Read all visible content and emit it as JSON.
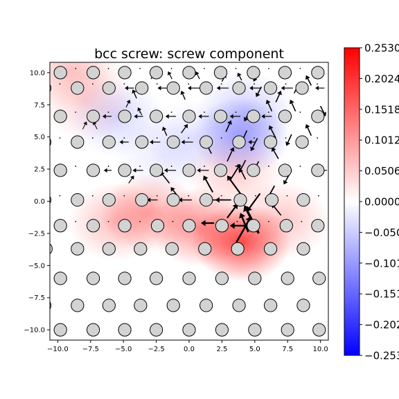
{
  "chart_data": {
    "type": "heatmap",
    "title": "bcc screw: screw component",
    "xlabel": "",
    "ylabel": "",
    "xlim": [
      -10.6,
      10.6
    ],
    "ylim": [
      -10.8,
      10.8
    ],
    "x_ticks": [
      -10.0,
      -7.5,
      -5.0,
      -2.5,
      0.0,
      2.5,
      5.0,
      7.5,
      10.0
    ],
    "x_tick_labels": [
      "−10.0",
      "−7.5",
      "−5.0",
      "−2.5",
      "0.0",
      "2.5",
      "5.0",
      "7.5",
      "10.0"
    ],
    "y_ticks": [
      -10.0,
      -7.5,
      -5.0,
      -2.5,
      0.0,
      2.5,
      5.0,
      7.5,
      10.0
    ],
    "y_tick_labels": [
      "−10.0",
      "−7.5",
      "−5.0",
      "−2.5",
      "0.0",
      "2.5",
      "5.0",
      "7.5",
      "10.0"
    ],
    "grid": false,
    "colormap": "bwr",
    "colors": {
      "min": "#0000ff",
      "mid": "#ffffff",
      "max": "#ff0000",
      "atom_fill": "#d3d3d3",
      "atom_edge": "#000000"
    },
    "colorbar": {
      "range": [
        -0.253,
        0.253
      ],
      "ticks": [
        0.253,
        0.2024,
        0.1518,
        0.1012,
        0.0506,
        0.0,
        -0.0506,
        -0.1012,
        -0.1518,
        -0.2024,
        -0.253
      ],
      "tick_labels": [
        "0.2530",
        "0.2024",
        "0.1518",
        "0.1012",
        "0.0506",
        "0.0000",
        "−0.050",
        "−0.101",
        "−0.151",
        "−0.202",
        "−0.253"
      ]
    },
    "atoms": {
      "rows": [
        {
          "y": 10.0,
          "x": [
            -9.8,
            -7.3,
            -4.9,
            -2.5,
            0.0,
            2.4,
            4.9,
            7.3,
            9.8
          ]
        },
        {
          "y": 8.8,
          "x": [
            -11.0,
            -8.5,
            -6.1,
            -3.6,
            -1.2,
            1.3,
            3.8,
            6.2,
            8.6,
            11.1
          ]
        },
        {
          "y": 6.6,
          "x": [
            -9.8,
            -7.3,
            -4.9,
            -2.5,
            0.0,
            2.4,
            4.9,
            7.3,
            9.8
          ]
        },
        {
          "y": 4.6,
          "x": [
            -11.0,
            -8.5,
            -6.1,
            -3.6,
            -1.2,
            1.3,
            3.8,
            6.2,
            8.6,
            11.1
          ]
        },
        {
          "y": 2.4,
          "x": [
            -9.8,
            -7.3,
            -4.9,
            -2.5,
            0.0,
            2.4,
            4.9,
            7.3,
            9.8
          ]
        },
        {
          "y": 0.1,
          "x": [
            -11.0,
            -8.5,
            -6.1,
            -3.6,
            -1.2,
            1.3,
            3.9,
            6.3,
            8.7,
            11.1
          ]
        },
        {
          "y": -1.9,
          "x": [
            -9.8,
            -7.3,
            -4.9,
            -2.4,
            0.0,
            2.5,
            4.9,
            7.4,
            9.8
          ]
        },
        {
          "y": -3.7,
          "x": [
            -10.9,
            -8.5,
            -6.1,
            -3.7,
            -1.3,
            1.2,
            3.7,
            6.2,
            8.7,
            11.1
          ]
        },
        {
          "y": -6.0,
          "x": [
            -9.8,
            -7.3,
            -4.9,
            -2.5,
            0.0,
            2.5,
            5.0,
            7.5,
            9.9
          ]
        },
        {
          "y": -8.1,
          "x": [
            -11.0,
            -8.5,
            -6.1,
            -3.7,
            -1.2,
            1.3,
            3.8,
            6.2,
            8.7,
            11.1
          ]
        },
        {
          "y": -10.0,
          "x": [
            -9.8,
            -7.3,
            -4.9,
            -2.5,
            0.0,
            2.5,
            5.0,
            7.5,
            9.9
          ]
        }
      ]
    },
    "field_peaks": [
      {
        "x": 4.0,
        "y": -3.2,
        "value": 0.19
      },
      {
        "x": 0.8,
        "y": -2.0,
        "value": 0.12
      },
      {
        "x": -3.0,
        "y": -0.9,
        "value": 0.09
      },
      {
        "x": -5.5,
        "y": -1.6,
        "value": 0.07
      },
      {
        "x": 7.0,
        "y": -1.5,
        "value": 0.06
      },
      {
        "x": -9.0,
        "y": 10.2,
        "value": 0.06
      },
      {
        "x": -7.8,
        "y": 7.8,
        "value": 0.04
      },
      {
        "x": 3.5,
        "y": 2.2,
        "value": 0.05
      },
      {
        "x": 4.0,
        "y": 5.0,
        "value": -0.09
      },
      {
        "x": 4.3,
        "y": 7.0,
        "value": -0.05
      },
      {
        "x": -5.5,
        "y": 6.5,
        "value": -0.04
      },
      {
        "x": 0.3,
        "y": 4.8,
        "value": -0.03
      },
      {
        "x": -2.0,
        "y": 3.5,
        "value": -0.02
      }
    ],
    "displacement_arrows": [
      {
        "x": 5.3,
        "y": -2.5,
        "dx": -1.1,
        "dy": 2.2,
        "width": 3.4
      },
      {
        "x": 4.5,
        "y": -2.4,
        "dx": -0.6,
        "dy": 1.5,
        "width": 2.5
      },
      {
        "x": 3.6,
        "y": -3.2,
        "dx": 1.1,
        "dy": 2.0,
        "width": 2.5
      },
      {
        "x": 4.5,
        "y": -1.9,
        "dx": -1.4,
        "dy": 0.0,
        "width": 2.4
      },
      {
        "x": 1.9,
        "y": -1.7,
        "dx": -1.0,
        "dy": 0.0,
        "width": 2.2
      },
      {
        "x": 3.9,
        "y": 0.6,
        "dx": -1.0,
        "dy": 1.4,
        "width": 2.2
      },
      {
        "x": 5.4,
        "y": 0.6,
        "dx": -1.0,
        "dy": -1.4,
        "width": 2.2
      },
      {
        "x": 2.9,
        "y": -1.3,
        "dx": 0.8,
        "dy": 1.1,
        "width": 2.2
      },
      {
        "x": 3.2,
        "y": 0.1,
        "dx": -1.2,
        "dy": 0.0,
        "width": 1.8
      },
      {
        "x": 1.8,
        "y": 0.7,
        "dx": -0.7,
        "dy": 1.3,
        "width": 2.0
      },
      {
        "x": 3.1,
        "y": 1.6,
        "dx": 0.8,
        "dy": 1.3,
        "width": 1.8
      },
      {
        "x": 6.5,
        "y": 1.2,
        "dx": -0.7,
        "dy": -1.3,
        "width": 1.8
      },
      {
        "x": 7.0,
        "y": -1.1,
        "dx": -0.7,
        "dy": 0.9,
        "width": 1.6
      },
      {
        "x": 4.3,
        "y": 1.7,
        "dx": -0.6,
        "dy": 1.2,
        "width": 1.6
      },
      {
        "x": 5.3,
        "y": 3.1,
        "dx": -0.6,
        "dy": -1.1,
        "width": 1.6
      },
      {
        "x": 2.9,
        "y": 3.1,
        "dx": 0.5,
        "dy": 1.1,
        "width": 1.6
      },
      {
        "x": 4.3,
        "y": 3.2,
        "dx": -0.5,
        "dy": -1.0,
        "width": 1.6
      },
      {
        "x": 7.8,
        "y": 2.4,
        "dx": -0.6,
        "dy": -1.1,
        "width": 1.6
      },
      {
        "x": 6.8,
        "y": 3.3,
        "dx": -0.5,
        "dy": 0.9,
        "width": 1.6
      },
      {
        "x": 1.7,
        "y": 3.7,
        "dx": -0.5,
        "dy": 1.0,
        "width": 1.6
      },
      {
        "x": 5.2,
        "y": 4.9,
        "dx": -0.5,
        "dy": -1.0,
        "width": 1.6
      },
      {
        "x": 6.6,
        "y": 4.9,
        "dx": -0.5,
        "dy": 1.0,
        "width": 1.6
      },
      {
        "x": 2.8,
        "y": 5.4,
        "dx": 0.4,
        "dy": 0.9,
        "width": 1.6
      },
      {
        "x": 4.4,
        "y": 5.5,
        "dx": -0.4,
        "dy": -0.9,
        "width": 1.6
      },
      {
        "x": 7.8,
        "y": 5.2,
        "dx": -0.4,
        "dy": -0.9,
        "width": 1.6
      },
      {
        "x": 9.3,
        "y": 5.1,
        "dx": -0.4,
        "dy": 0.9,
        "width": 1.6
      },
      {
        "x": 2.5,
        "y": 6.1,
        "dx": -0.3,
        "dy": 0.8,
        "width": 1.6
      },
      {
        "x": 4.6,
        "y": 7.0,
        "dx": -0.4,
        "dy": -0.8,
        "width": 1.6
      },
      {
        "x": 6.3,
        "y": 7.0,
        "dx": -0.4,
        "dy": 0.9,
        "width": 1.6
      },
      {
        "x": 8.1,
        "y": 7.0,
        "dx": -0.4,
        "dy": 0.9,
        "width": 1.6
      },
      {
        "x": 10.0,
        "y": 7.4,
        "dx": 0.4,
        "dy": -0.8,
        "width": 1.6
      },
      {
        "x": 5.5,
        "y": 8.9,
        "dx": -0.4,
        "dy": -0.8,
        "width": 1.6
      },
      {
        "x": 6.6,
        "y": 7.7,
        "dx": 0.4,
        "dy": 0.9,
        "width": 1.6
      },
      {
        "x": 8.0,
        "y": 8.4,
        "dx": 0.4,
        "dy": 0.8,
        "width": 1.6
      },
      {
        "x": 9.3,
        "y": 9.0,
        "dx": -0.4,
        "dy": 0.8,
        "width": 1.6
      },
      {
        "x": 2.5,
        "y": 9.3,
        "dx": 0.3,
        "dy": 0.6,
        "width": 1.4
      },
      {
        "x": 4.0,
        "y": 9.4,
        "dx": -0.3,
        "dy": 0.6,
        "width": 1.4
      },
      {
        "x": 5.2,
        "y": 9.9,
        "dx": -0.3,
        "dy": -0.6,
        "width": 1.4
      },
      {
        "x": -2.9,
        "y": 9.5,
        "dx": 0.3,
        "dy": 0.6,
        "width": 1.2
      },
      {
        "x": -1.3,
        "y": 9.5,
        "dx": -0.3,
        "dy": 0.6,
        "width": 1.2
      },
      {
        "x": 0.8,
        "y": 9.5,
        "dx": -0.3,
        "dy": 0.6,
        "width": 1.2
      },
      {
        "x": -4.0,
        "y": 8.0,
        "dx": -0.3,
        "dy": 0.7,
        "width": 1.4
      },
      {
        "x": -0.3,
        "y": 7.9,
        "dx": -0.3,
        "dy": 0.7,
        "width": 1.4
      },
      {
        "x": -0.6,
        "y": 5.3,
        "dx": 0.5,
        "dy": 0.7,
        "width": 1.4
      },
      {
        "x": -1.7,
        "y": 5.1,
        "dx": -0.3,
        "dy": 0.7,
        "width": 1.4
      },
      {
        "x": -4.8,
        "y": 7.3,
        "dx": 0.3,
        "dy": 0.6,
        "width": 1.2
      },
      {
        "x": -3.6,
        "y": 6.7,
        "dx": -0.3,
        "dy": 0.6,
        "width": 1.2
      },
      {
        "x": -1.5,
        "y": 1.4,
        "dx": -0.7,
        "dy": 0.9,
        "width": 1.6
      },
      {
        "x": -0.8,
        "y": 0.3,
        "dx": -0.6,
        "dy": 0.8,
        "width": 1.6
      },
      {
        "x": -4.6,
        "y": 1.4,
        "dx": 0.4,
        "dy": 0.6,
        "width": 1.2
      },
      {
        "x": 0.8,
        "y": 8.8,
        "dx": -0.9,
        "dy": 0.0,
        "width": 1.2
      },
      {
        "x": 3.0,
        "y": 8.8,
        "dx": -0.9,
        "dy": 0.0,
        "width": 1.2
      },
      {
        "x": 5.5,
        "y": 8.8,
        "dx": -0.9,
        "dy": 0.0,
        "width": 1.2
      },
      {
        "x": 7.9,
        "y": 8.8,
        "dx": -0.9,
        "dy": 0.0,
        "width": 1.2
      },
      {
        "x": 10.3,
        "y": 8.8,
        "dx": -0.7,
        "dy": 0.0,
        "width": 1.2
      },
      {
        "x": -1.7,
        "y": 8.8,
        "dx": -0.7,
        "dy": 0.0,
        "width": 1.2
      },
      {
        "x": -4.2,
        "y": 8.8,
        "dx": -0.7,
        "dy": 0.0,
        "width": 1.2
      },
      {
        "x": -1.0,
        "y": 6.6,
        "dx": -0.8,
        "dy": 0.0,
        "width": 1.2
      },
      {
        "x": 1.5,
        "y": 6.6,
        "dx": -0.8,
        "dy": 0.0,
        "width": 1.2
      },
      {
        "x": 3.9,
        "y": 6.6,
        "dx": -0.8,
        "dy": 0.0,
        "width": 1.2
      },
      {
        "x": 6.3,
        "y": 6.6,
        "dx": -0.8,
        "dy": 0.0,
        "width": 1.2
      },
      {
        "x": -3.5,
        "y": 6.6,
        "dx": -0.7,
        "dy": 0.0,
        "width": 1.2
      },
      {
        "x": -5.9,
        "y": 6.6,
        "dx": -0.7,
        "dy": 0.0,
        "width": 1.2
      },
      {
        "x": 0.3,
        "y": 4.6,
        "dx": -0.9,
        "dy": 0.0,
        "width": 1.2
      },
      {
        "x": 5.0,
        "y": 4.6,
        "dx": -0.5,
        "dy": 0.0,
        "width": 1.2
      },
      {
        "x": -2.2,
        "y": 4.6,
        "dx": -0.8,
        "dy": 0.0,
        "width": 1.2
      },
      {
        "x": -4.6,
        "y": 4.6,
        "dx": -0.7,
        "dy": 0.0,
        "width": 1.2
      },
      {
        "x": -1.0,
        "y": 2.4,
        "dx": -0.9,
        "dy": 0.0,
        "width": 1.2
      },
      {
        "x": 1.5,
        "y": 2.4,
        "dx": -0.9,
        "dy": 0.0,
        "width": 1.2
      },
      {
        "x": -3.5,
        "y": 2.4,
        "dx": -0.8,
        "dy": 0.0,
        "width": 1.2
      },
      {
        "x": -5.9,
        "y": 2.4,
        "dx": -0.6,
        "dy": 0.0,
        "width": 1.2
      },
      {
        "x": 10.5,
        "y": 2.4,
        "dx": -0.6,
        "dy": 0.0,
        "width": 1.2
      },
      {
        "x": 2.6,
        "y": 0.1,
        "dx": -1.1,
        "dy": 0.0,
        "width": 1.6
      },
      {
        "x": 0.2,
        "y": 0.1,
        "dx": -1.0,
        "dy": 0.0,
        "width": 1.4
      },
      {
        "x": -2.4,
        "y": 0.1,
        "dx": -0.8,
        "dy": 0.0,
        "width": 1.2
      },
      {
        "x": 0.3,
        "y": -1.9,
        "dx": -0.6,
        "dy": 0.0,
        "width": 1.2
      },
      {
        "x": -7.0,
        "y": 5.6,
        "dx": -0.3,
        "dy": 0.6,
        "width": 1.0
      },
      {
        "x": -8.1,
        "y": 5.6,
        "dx": 0.3,
        "dy": 0.6,
        "width": 1.0
      }
    ]
  }
}
